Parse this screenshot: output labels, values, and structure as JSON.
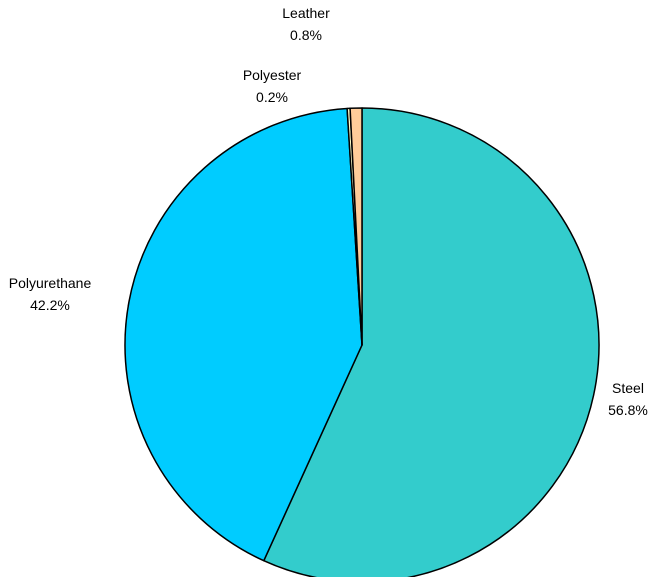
{
  "chart_data": {
    "type": "pie",
    "title": "",
    "slices": [
      {
        "label": "Steel",
        "percent": "56.8%",
        "value": 56.8,
        "color": "#33CCCC"
      },
      {
        "label": "Polyurethane",
        "percent": "42.2%",
        "value": 42.2,
        "color": "#00CCFF"
      },
      {
        "label": "Polyester",
        "percent": "0.2%",
        "value": 0.2,
        "color": "#FFFFCC"
      },
      {
        "label": "Leather",
        "percent": "0.8%",
        "value": 0.8,
        "color": "#FFCC99"
      }
    ],
    "legend": "none"
  }
}
